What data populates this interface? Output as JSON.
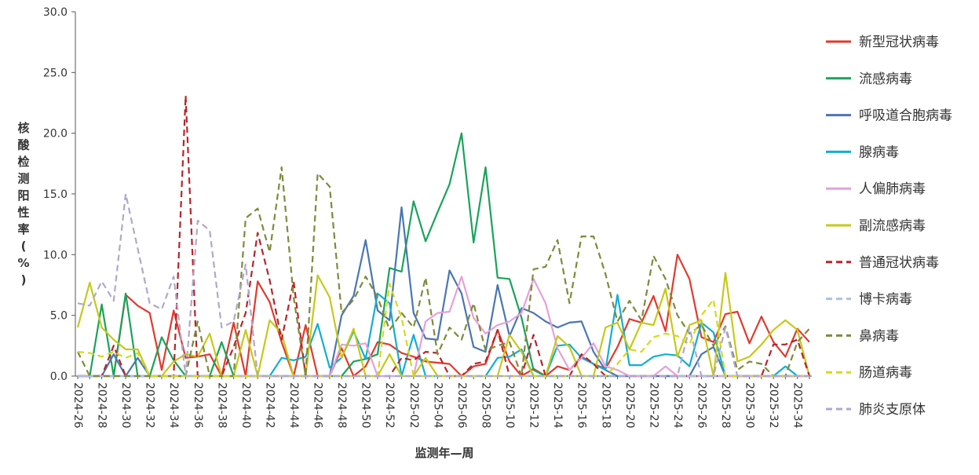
{
  "chart_data": {
    "type": "line",
    "xlabel": "监测年—周",
    "ylabel": "核酸检测阳性率(%)",
    "ylim": [
      0,
      30
    ],
    "yticks": [
      "0.0",
      "5.0",
      "10.0",
      "15.0",
      "20.0",
      "25.0",
      "30.0"
    ],
    "x": [
      "2024-26",
      "2024-27",
      "2024-28",
      "2024-29",
      "2024-30",
      "2024-31",
      "2024-32",
      "2024-33",
      "2024-34",
      "2024-35",
      "2024-36",
      "2024-37",
      "2024-38",
      "2024-39",
      "2024-40",
      "2024-41",
      "2024-42",
      "2024-43",
      "2024-44",
      "2024-45",
      "2024-46",
      "2024-47",
      "2024-48",
      "2024-49",
      "2024-50",
      "2024-51",
      "2024-52",
      "2025-01",
      "2025-02",
      "2025-03",
      "2025-04",
      "2025-05",
      "2025-06",
      "2025-07",
      "2025-08",
      "2025-09",
      "2025-10",
      "2025-11",
      "2025-12",
      "2025-13",
      "2025-14",
      "2025-15",
      "2025-16",
      "2025-17",
      "2025-18",
      "2025-19",
      "2025-20",
      "2025-21",
      "2025-22",
      "2025-23",
      "2025-24",
      "2025-25",
      "2025-26",
      "2025-27",
      "2025-28",
      "2025-29",
      "2025-30",
      "2025-31",
      "2025-32",
      "2025-33",
      "2025-34",
      "2025-35"
    ],
    "xtick_labels": [
      "2024-26",
      "2024-28",
      "2024-30",
      "2024-32",
      "2024-34",
      "2024-36",
      "2024-38",
      "2024-40",
      "2024-42",
      "2024-44",
      "2024-46",
      "2024-48",
      "2024-50",
      "2024-52",
      "2025-02",
      "2025-04",
      "2025-06",
      "2025-08",
      "2025-10",
      "2025-12",
      "2025-14",
      "2025-16",
      "2025-18",
      "2025-20",
      "2025-22",
      "2025-24",
      "2025-26",
      "2025-28",
      "2025-30",
      "2025-32",
      "2025-34"
    ],
    "legend_position": "right",
    "series": [
      {
        "name": "新型冠状病毒",
        "color": "#e03a2f",
        "dash": "solid",
        "values": [
          0,
          0,
          0,
          0,
          6.7,
          5.8,
          5.2,
          0.5,
          5.4,
          1.5,
          1.6,
          1.8,
          0,
          4.4,
          0,
          7.8,
          6.1,
          2.8,
          0,
          4.2,
          0,
          0,
          2.3,
          0,
          0.8,
          2.8,
          2.6,
          1.9,
          1.6,
          1.2,
          1.1,
          1.0,
          0,
          0.8,
          1.0,
          3.8,
          1.2,
          0,
          0.6,
          0,
          0.8,
          0.5,
          1.6,
          1.0,
          0.6,
          2.4,
          4.7,
          4.4,
          6.6,
          3.7,
          10.0,
          8.0,
          3.2,
          2.8,
          5.1,
          5.3,
          2.7,
          4.9,
          2.8,
          1.6,
          3.9,
          2.8
        ]
      },
      {
        "name": "流感病毒",
        "color": "#1aa35a",
        "dash": "solid",
        "values": [
          0,
          0,
          5.9,
          0,
          6.8,
          0,
          0,
          3.2,
          1.3,
          0,
          0,
          0,
          2.8,
          0,
          0,
          0,
          0,
          0,
          0,
          0,
          0,
          0,
          0,
          1.2,
          1.4,
          1.8,
          8.9,
          8.6,
          14.4,
          11.1,
          13.5,
          15.8,
          20.0,
          11.0,
          17.2,
          8.1,
          8.0,
          4.8,
          0.5,
          0,
          0,
          0,
          0,
          0,
          0,
          0,
          0,
          0,
          0,
          0,
          0,
          0,
          0,
          0,
          0,
          0,
          0,
          0,
          0,
          0,
          0,
          0
        ]
      },
      {
        "name": "呼吸道合胞病毒",
        "color": "#4a76b0",
        "dash": "solid",
        "values": [
          0,
          0,
          0,
          1.8,
          0,
          1.5,
          0,
          0,
          0,
          0,
          0,
          0,
          0,
          0,
          0,
          0,
          0,
          0,
          0,
          0,
          0,
          0,
          5.0,
          6.6,
          11.2,
          5.4,
          4.6,
          13.9,
          5.2,
          3.1,
          3.0,
          8.7,
          6.8,
          2.4,
          2.0,
          7.5,
          3.3,
          5.6,
          5.2,
          4.5,
          4.0,
          4.4,
          4.5,
          2.0,
          0.5,
          0,
          0,
          0,
          0,
          0,
          0,
          0,
          1.8,
          2.4,
          0,
          0,
          0,
          0,
          0,
          0,
          0,
          0
        ]
      },
      {
        "name": "腺病毒",
        "color": "#12aed1",
        "dash": "solid",
        "values": [
          0,
          0,
          0,
          0,
          0,
          0,
          0,
          0,
          0,
          0,
          0,
          0,
          0,
          0,
          0,
          0,
          0,
          1.5,
          1.3,
          1.6,
          4.3,
          0.7,
          1.5,
          3.7,
          1.4,
          6.8,
          6.0,
          0,
          3.4,
          0,
          0,
          0,
          0,
          0,
          0,
          1.5,
          1.6,
          2.2,
          0,
          0,
          2.5,
          2.6,
          1.5,
          1.0,
          0.5,
          6.7,
          0.9,
          0.9,
          1.6,
          1.8,
          1.7,
          0.8,
          4.4,
          3.6,
          0,
          0,
          0,
          0,
          0,
          0.8,
          0,
          0
        ]
      },
      {
        "name": "人偏肺病毒",
        "color": "#e5a1d8",
        "dash": "solid",
        "values": [
          0,
          0,
          0,
          0,
          0,
          0,
          0,
          0,
          0,
          0,
          0,
          0,
          0,
          0,
          0,
          0,
          0,
          0,
          0,
          0,
          0,
          0,
          2.6,
          2.5,
          2.7,
          0,
          0,
          0,
          0,
          4.5,
          5.2,
          5.3,
          8.2,
          4.8,
          3.5,
          4.2,
          4.5,
          5.2,
          8.0,
          6.0,
          2.3,
          0.5,
          1.5,
          2.7,
          0.8,
          0.5,
          0,
          0,
          0,
          0.8,
          0,
          0,
          0,
          0,
          0,
          0,
          0,
          0,
          0,
          0,
          0,
          0
        ]
      },
      {
        "name": "副流感病毒",
        "color": "#c5c919",
        "dash": "solid",
        "values": [
          4.0,
          7.7,
          4.0,
          3.0,
          2.2,
          2.2,
          0,
          0,
          1.2,
          1.8,
          1.6,
          3.5,
          0,
          0,
          3.8,
          0,
          4.6,
          3.5,
          0,
          0,
          8.3,
          6.5,
          1.5,
          3.9,
          0,
          0,
          1.8,
          0,
          0,
          1.5,
          0,
          0,
          0,
          0,
          0,
          0,
          3.4,
          2.0,
          0,
          0,
          3.3,
          2.4,
          0,
          0,
          4.0,
          4.4,
          2.2,
          4.4,
          4.2,
          7.2,
          1.6,
          4.2,
          4.6,
          0,
          8.5,
          1.2,
          1.6,
          2.6,
          3.8,
          4.6,
          3.8,
          0
        ]
      },
      {
        "name": "普通冠状病毒",
        "color": "#b8242a",
        "dash": "dash",
        "values": [
          0,
          0,
          0,
          2.5,
          0,
          0,
          0,
          0,
          0,
          23.1,
          0,
          0,
          0,
          2.4,
          5.2,
          11.8,
          7.9,
          3.0,
          7.8,
          0,
          0,
          0,
          0,
          0,
          0,
          0,
          0,
          1.5,
          1.3,
          2.0,
          1.9,
          0,
          0,
          1.0,
          1.2,
          3.8,
          0,
          0,
          3.4,
          0,
          0,
          0,
          1.8,
          1.0,
          0,
          0,
          0,
          0,
          0,
          0,
          0,
          0,
          0,
          0,
          0,
          0,
          0,
          0,
          2.6,
          2.6,
          3.0,
          0
        ]
      },
      {
        "name": "博卡病毒",
        "color": "#a7c3e6",
        "dash": "dash",
        "values": [
          0,
          0,
          0,
          0,
          0,
          0,
          0,
          0,
          0,
          0,
          0,
          0,
          0,
          0,
          0,
          0,
          0,
          0,
          0,
          0,
          0,
          0,
          0,
          0,
          0,
          0,
          0,
          0,
          0,
          0,
          0,
          0,
          0,
          0,
          0,
          0,
          0,
          0,
          0,
          0,
          0,
          0,
          0,
          0,
          0,
          0,
          0,
          0,
          0,
          0,
          0,
          0,
          0,
          0,
          0,
          0,
          0,
          0,
          0,
          0,
          0,
          0
        ]
      },
      {
        "name": "鼻病毒",
        "color": "#7f8a3a",
        "dash": "dash",
        "values": [
          2.0,
          0,
          0,
          0,
          0,
          0,
          0,
          0,
          0,
          0,
          4.5,
          0,
          0,
          0,
          13.0,
          13.8,
          10.2,
          17.2,
          6.5,
          0,
          16.7,
          15.6,
          5.2,
          6.3,
          8.2,
          6.5,
          3.8,
          5.2,
          4.0,
          8.1,
          1.8,
          4.0,
          3.0,
          6.0,
          2.1,
          2.5,
          2.8,
          0,
          8.8,
          9.0,
          11.2,
          6.0,
          11.5,
          11.5,
          8.4,
          4.5,
          6.2,
          4.6,
          9.9,
          8.0,
          5.0,
          3.5,
          4.2,
          2.5,
          4.1,
          0.5,
          1.2,
          1.0,
          0,
          0,
          2.8,
          3.9
        ]
      },
      {
        "name": "肠道病毒",
        "color": "#d6d91d",
        "dash": "dash",
        "values": [
          2.0,
          1.9,
          1.6,
          2.0,
          1.5,
          1.9,
          0,
          0,
          0,
          0,
          0,
          0,
          0,
          0,
          0,
          0,
          0,
          0,
          0,
          0,
          0,
          0,
          0,
          0,
          0,
          0,
          7.6,
          4.8,
          0,
          0,
          0,
          0,
          0,
          0,
          0,
          0,
          0,
          0,
          0,
          0,
          0,
          0,
          0,
          0,
          0,
          1.0,
          2.2,
          2.0,
          3.2,
          3.5,
          3.3,
          2.6,
          5.0,
          6.3,
          0,
          0,
          0,
          0,
          0,
          0,
          0,
          0
        ]
      },
      {
        "name": "肺炎支原体",
        "color": "#b0a8cc",
        "dash": "dash",
        "values": [
          6.0,
          5.8,
          7.8,
          6.2,
          15.0,
          10.5,
          6.0,
          5.5,
          8.2,
          0,
          12.8,
          12.0,
          4.0,
          4.5,
          9.2,
          0,
          0,
          0,
          0,
          0,
          0,
          0,
          0,
          0,
          0,
          0,
          0,
          0,
          0,
          0,
          0,
          0,
          0,
          0,
          0,
          0,
          0,
          0,
          0,
          0,
          0,
          0,
          0,
          0,
          0,
          0,
          0,
          0,
          0,
          0,
          0,
          4.0,
          0,
          0,
          4.0,
          0,
          0,
          0,
          0,
          0,
          0,
          0
        ]
      }
    ]
  }
}
